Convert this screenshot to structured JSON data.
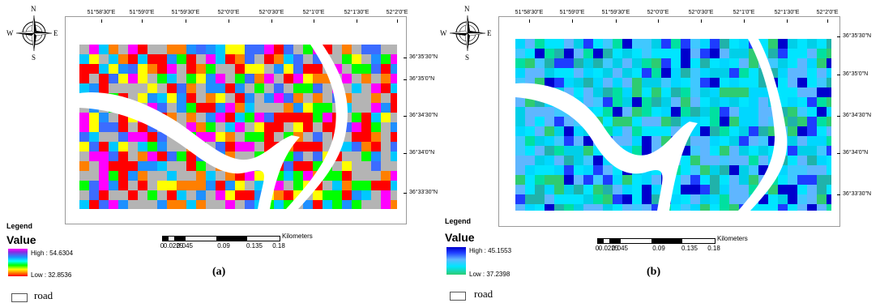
{
  "panels": [
    {
      "id": "a",
      "label": "(a)",
      "compass": {
        "n": "N",
        "s": "S",
        "e": "E",
        "w": "W"
      },
      "lon_ticks": [
        "51°58'30\"E",
        "51°59'0\"E",
        "51°59'30\"E",
        "52°0'0\"E",
        "52°0'30\"E",
        "52°1'0\"E",
        "52°1'30\"E",
        "52°2'0\"E"
      ],
      "lat_ticks": [
        "36°35'30\"N",
        "36°35'0\"N",
        "36°34'30\"N",
        "36°34'0\"N",
        "36°33'30\"N"
      ],
      "legend": {
        "title": "Legend",
        "value_title": "Value",
        "high": "High : 54.6304",
        "low": "Low : 32.8536",
        "road": "road"
      },
      "scale": {
        "ticks": [
          "0",
          "0.0225",
          "0.045",
          "0.09",
          "0.135",
          "0.18"
        ],
        "unit": "Kilometers"
      },
      "palette": [
        "#b4b4b4",
        "#b4b4b4",
        "#b4b4b4",
        "#ff0000",
        "#ff0000",
        "#3c6cff",
        "#1e90ff",
        "#00c8ff",
        "#00ff00",
        "#ffff00",
        "#ff00ff",
        "#ff7f00"
      ],
      "road_color": "#ffffff",
      "seed": 7
    },
    {
      "id": "b",
      "label": "(b)",
      "compass": {
        "n": "N",
        "s": "S",
        "e": "E",
        "w": "W"
      },
      "lon_ticks": [
        "51°58'30\"E",
        "51°59'0\"E",
        "51°59'30\"E",
        "52°0'0\"E",
        "52°0'30\"E",
        "52°1'0\"E",
        "52°1'30\"E",
        "52°2'0\"E"
      ],
      "lat_ticks": [
        "36°35'30\"N",
        "36°35'0\"N",
        "36°34'30\"N",
        "36°34'0\"N",
        "36°33'30\"N"
      ],
      "legend": {
        "title": "Legend",
        "value_title": "Value",
        "high": "High : 45.1553",
        "low": "Low : 37.2398",
        "road": "road"
      },
      "scale": {
        "ticks": [
          "0",
          "0.0225",
          "0.045",
          "0.09",
          "0.135",
          "0.18"
        ],
        "unit": "Kilometers"
      },
      "palette": [
        "#00e5ff",
        "#00e5ff",
        "#00d7ff",
        "#40c8ff",
        "#5fb6ff",
        "#5fb6ff",
        "#1e3cff",
        "#0000cd",
        "#00e0a0",
        "#2ecc71",
        "#20b2aa",
        "#00cfe8"
      ],
      "road_color": "#ffffff",
      "seed": 13
    }
  ]
}
